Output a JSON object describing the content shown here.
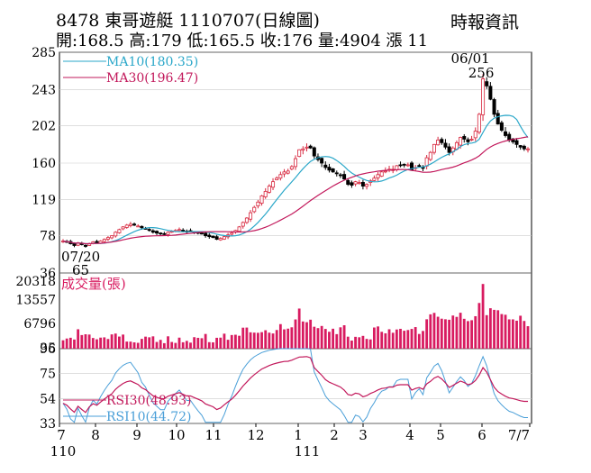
{
  "header": {
    "title": "8478  東哥遊艇 1110707(日線圖)",
    "quote": "開:168.5 高:179 低:165.5 收:176 量:4904 漲 11",
    "source": "時報資訊"
  },
  "colors": {
    "up": "#d7263d",
    "down": "#000000",
    "ma10": "#2aa7c9",
    "ma30": "#c2185b",
    "volume": "#d81b60",
    "rsi30": "#c2185b",
    "rsi10": "#4a9fd8"
  },
  "chart_data": [
    {
      "type": "candlestick",
      "panel": "price",
      "ylim": [
        36,
        285
      ],
      "yticks": [
        285,
        243,
        202,
        160,
        119,
        78,
        36
      ],
      "legend": [
        {
          "name": "MA10(180.35)",
          "key": "ma10"
        },
        {
          "name": "MA30(196.47)",
          "key": "ma30"
        }
      ],
      "annotations": [
        {
          "label": "06/01",
          "value_label": "256",
          "date": "2022-06-01",
          "y": 256
        },
        {
          "label": "07/20",
          "value_label": "65",
          "date": "2021-07-20",
          "y": 65
        }
      ],
      "close": [
        72,
        71,
        69,
        67,
        70,
        68,
        66,
        69,
        71,
        70,
        72,
        74,
        76,
        78,
        82,
        85,
        88,
        90,
        91,
        90,
        89,
        87,
        86,
        84,
        82,
        81,
        80,
        80,
        82,
        83,
        84,
        85,
        84,
        83,
        83,
        82,
        81,
        80,
        78,
        77,
        76,
        74,
        75,
        77,
        79,
        81,
        84,
        88,
        93,
        98,
        104,
        110,
        116,
        123,
        128,
        134,
        139,
        143,
        147,
        150,
        151,
        156,
        165,
        175,
        176,
        178,
        177,
        168,
        164,
        160,
        155,
        152,
        150,
        148,
        146,
        142,
        136,
        135,
        139,
        138,
        134,
        136,
        140,
        143,
        147,
        150,
        151,
        153,
        153,
        157,
        158,
        158,
        158,
        152,
        155,
        157,
        155,
        166,
        172,
        181,
        186,
        183,
        178,
        172,
        177,
        183,
        189,
        187,
        184,
        187,
        196,
        215,
        255,
        247,
        232,
        215,
        204,
        197,
        191,
        186,
        184,
        181,
        178,
        176,
        176
      ]
    },
    {
      "type": "bar",
      "panel": "volume",
      "label": "成交量(張)",
      "ylim": [
        0,
        20318
      ],
      "yticks": [
        20318,
        13557,
        6796,
        35
      ]
    },
    {
      "type": "line",
      "panel": "rsi",
      "ylim": [
        33,
        96
      ],
      "yticks": [
        96,
        75,
        54,
        33
      ],
      "legend": [
        {
          "name": "RSI30(48.93)",
          "key": "rsi30"
        },
        {
          "name": "RSI10(44.72)",
          "key": "rsi10"
        }
      ],
      "xticks": [
        "7",
        "8",
        "9",
        "10",
        "11",
        "12",
        "1",
        "2",
        "3",
        "4",
        "5",
        "6",
        "7/7"
      ],
      "year_labels": [
        "110",
        "111"
      ]
    }
  ]
}
